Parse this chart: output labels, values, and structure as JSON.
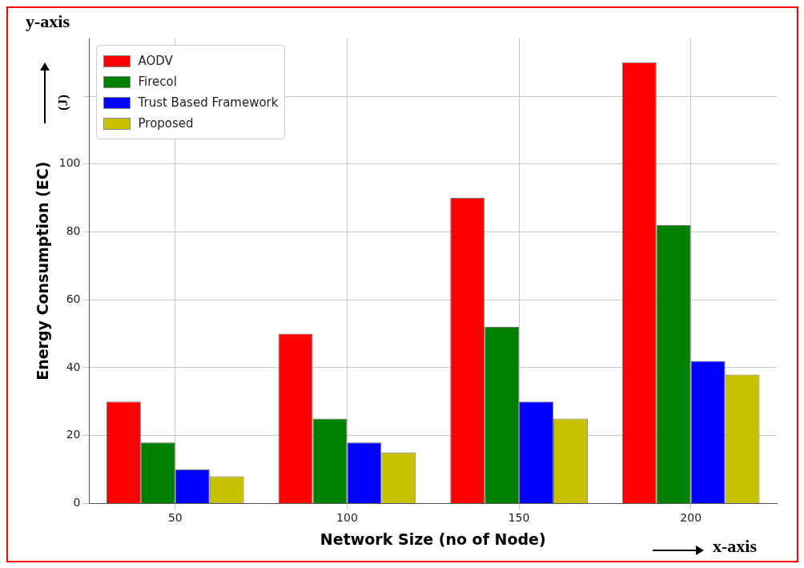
{
  "chart_data": {
    "type": "bar",
    "xlabel": "Network Size (no of Node)",
    "ylabel": "Energy Consumption (EC)",
    "categories": [
      "50",
      "100",
      "150",
      "200"
    ],
    "series": [
      {
        "name": "AODV",
        "color": "#ff0000",
        "values": [
          30,
          50,
          90,
          130
        ]
      },
      {
        "name": "Firecol",
        "color": "#008000",
        "values": [
          18,
          25,
          52,
          82
        ]
      },
      {
        "name": "Trust Based Framework",
        "color": "#0000ff",
        "values": [
          10,
          18,
          30,
          42
        ]
      },
      {
        "name": "Proposed",
        "color": "#c8c000",
        "values": [
          8,
          15,
          25,
          38
        ]
      }
    ],
    "ylim": [
      0,
      137
    ],
    "yticks": [
      0,
      20,
      40,
      60,
      80,
      100,
      {
        "value": 120,
        "label": null
      }
    ],
    "grid": true,
    "legend": "top left",
    "annotations": [
      "y-axis",
      "x-axis",
      "(J)"
    ]
  }
}
